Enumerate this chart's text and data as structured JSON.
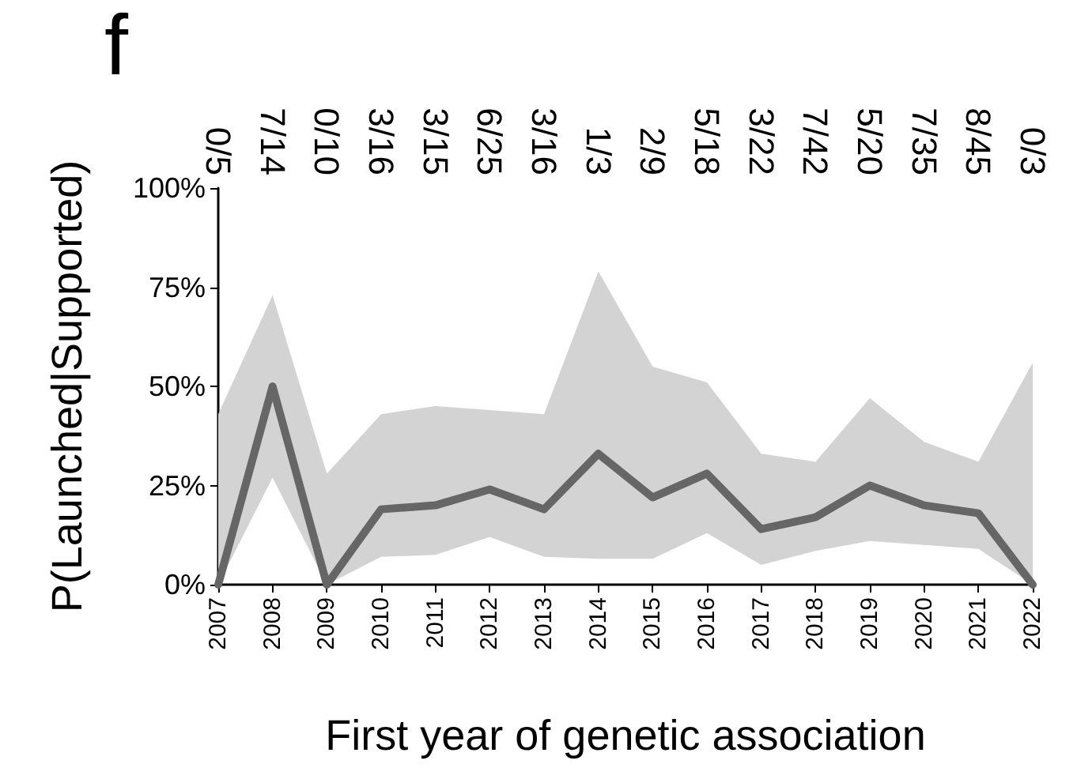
{
  "chart_data": {
    "type": "line",
    "xlabel": "First year of genetic association",
    "ylabel": "P(Launched|Supported)",
    "annotations": [
      "f",
      "0/5",
      "7/14",
      "0/10",
      "3/16",
      "3/15",
      "6/25",
      "3/16",
      "1/3",
      "2/9",
      "5/18",
      "3/22",
      "7/42",
      "5/20",
      "7/35",
      "8/45",
      "0/3"
    ],
    "categories": [
      "2007",
      "2008",
      "2009",
      "2010",
      "2011",
      "2012",
      "2013",
      "2014",
      "2015",
      "2016",
      "2017",
      "2018",
      "2019",
      "2020",
      "2021",
      "2022"
    ],
    "series": [
      {
        "color": "#666666",
        "values": [
          0,
          50,
          0,
          19,
          20,
          24,
          19,
          33,
          22,
          28,
          14,
          17,
          25,
          20,
          18,
          0
        ],
        "lower": [
          0,
          27,
          0,
          7,
          7.5,
          12,
          7,
          6.5,
          6.5,
          13,
          5,
          8.5,
          11,
          10,
          9,
          0
        ],
        "upper": [
          43,
          73,
          28,
          43,
          45,
          44,
          43,
          79,
          55,
          51,
          33,
          31,
          47,
          36,
          31,
          56
        ]
      }
    ],
    "ylim": [
      0,
      100
    ],
    "yticks": [
      {
        "value": 0,
        "label": "0%"
      },
      {
        "value": 25,
        "label": "25%"
      },
      {
        "value": 50,
        "label": "50%"
      },
      {
        "value": 75,
        "label": "75%"
      },
      {
        "value": 100,
        "label": "100%"
      }
    ],
    "grid": false,
    "marker": "none",
    "line_style": "solid"
  }
}
